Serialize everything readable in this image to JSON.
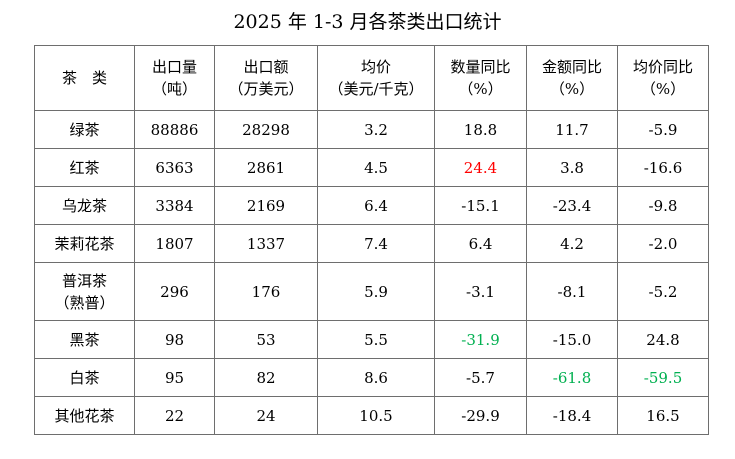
{
  "title": "2025 年 1-3 月各茶类出口统计",
  "colors": {
    "increase_highlight": "#ff0000",
    "decrease_highlight": "#00b050",
    "border": "#6e6e6e",
    "text": "#000000"
  },
  "headers": [
    {
      "line1": "茶　类",
      "line2": ""
    },
    {
      "line1": "出口量",
      "line2": "（吨）"
    },
    {
      "line1": "出口额",
      "line2": "（万美元）"
    },
    {
      "line1": "均价",
      "line2": "（美元/千克）"
    },
    {
      "line1": "数量同比",
      "line2": "（%）"
    },
    {
      "line1": "金额同比",
      "line2": "（%）"
    },
    {
      "line1": "均价同比",
      "line2": "（%）"
    }
  ],
  "rows": [
    {
      "name": [
        "绿茶"
      ],
      "volume": "88886",
      "value": "28298",
      "price": "3.2",
      "volume_yoy": "18.8",
      "value_yoy": "11.7",
      "price_yoy": "-5.9",
      "highlight": {}
    },
    {
      "name": [
        "红茶"
      ],
      "volume": "6363",
      "value": "2861",
      "price": "4.5",
      "volume_yoy": "24.4",
      "value_yoy": "3.8",
      "price_yoy": "-16.6",
      "highlight": {
        "volume_yoy": "increase"
      }
    },
    {
      "name": [
        "乌龙茶"
      ],
      "volume": "3384",
      "value": "2169",
      "price": "6.4",
      "volume_yoy": "-15.1",
      "value_yoy": "-23.4",
      "price_yoy": "-9.8",
      "highlight": {}
    },
    {
      "name": [
        "茉莉花茶"
      ],
      "volume": "1807",
      "value": "1337",
      "price": "7.4",
      "volume_yoy": "6.4",
      "value_yoy": "4.2",
      "price_yoy": "-2.0",
      "highlight": {}
    },
    {
      "name": [
        "普洱茶",
        "（熟普）"
      ],
      "volume": "296",
      "value": "176",
      "price": "5.9",
      "volume_yoy": "-3.1",
      "value_yoy": "-8.1",
      "price_yoy": "-5.2",
      "highlight": {}
    },
    {
      "name": [
        "黑茶"
      ],
      "volume": "98",
      "value": "53",
      "price": "5.5",
      "volume_yoy": "-31.9",
      "value_yoy": "-15.0",
      "price_yoy": "24.8",
      "highlight": {
        "volume_yoy": "decrease"
      }
    },
    {
      "name": [
        "白茶"
      ],
      "volume": "95",
      "value": "82",
      "price": "8.6",
      "volume_yoy": "-5.7",
      "value_yoy": "-61.8",
      "price_yoy": "-59.5",
      "highlight": {
        "value_yoy": "decrease",
        "price_yoy": "decrease"
      }
    },
    {
      "name": [
        "其他花茶"
      ],
      "volume": "22",
      "value": "24",
      "price": "10.5",
      "volume_yoy": "-29.9",
      "value_yoy": "-18.4",
      "price_yoy": "16.5",
      "highlight": {}
    }
  ]
}
